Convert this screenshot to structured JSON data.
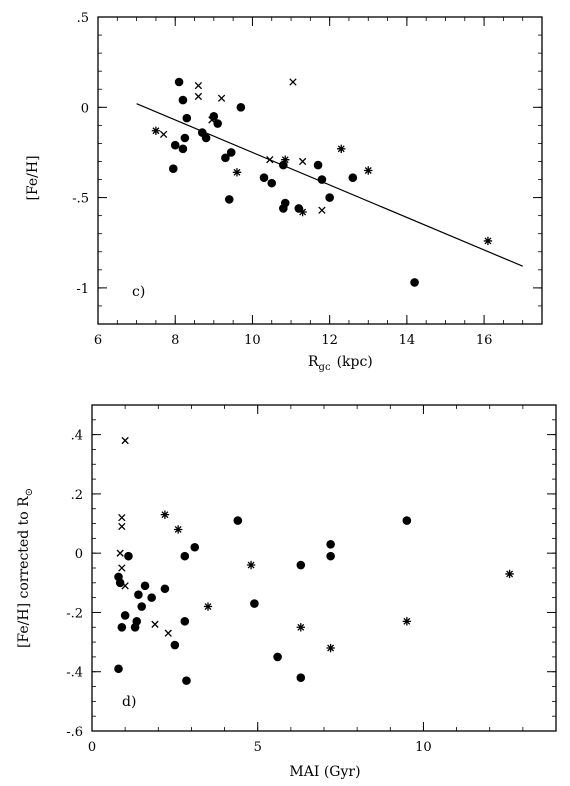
{
  "chart_data": [
    {
      "type": "scatter",
      "panel_label": "c)",
      "xlabel_main": "R",
      "xlabel_sub": "gc",
      "xlabel_unit": "(kpc)",
      "ylabel": "[Fe/H]",
      "xlim": [
        6,
        17.5
      ],
      "ylim": [
        -1.2,
        0.5
      ],
      "xticks": [
        "6",
        "8",
        "10",
        "12",
        "14",
        "16"
      ],
      "yticks": [
        ".5",
        "0",
        "-.5",
        "-1"
      ],
      "fit_line": {
        "x": [
          7.0,
          17.0
        ],
        "y": [
          0.02,
          -0.88
        ]
      },
      "series": [
        {
          "marker": "dot",
          "points": [
            [
              8.1,
              0.14
            ],
            [
              8.2,
              0.04
            ],
            [
              8.3,
              -0.06
            ],
            [
              8.25,
              -0.17
            ],
            [
              8.0,
              -0.21
            ],
            [
              8.2,
              -0.23
            ],
            [
              7.95,
              -0.34
            ],
            [
              8.7,
              -0.14
            ],
            [
              8.8,
              -0.17
            ],
            [
              9.0,
              -0.05
            ],
            [
              9.1,
              -0.09
            ],
            [
              9.3,
              -0.28
            ],
            [
              9.45,
              -0.25
            ],
            [
              9.7,
              0.0
            ],
            [
              9.4,
              -0.51
            ],
            [
              10.3,
              -0.39
            ],
            [
              10.5,
              -0.42
            ],
            [
              10.8,
              -0.32
            ],
            [
              10.85,
              -0.53
            ],
            [
              10.8,
              -0.56
            ],
            [
              11.2,
              -0.56
            ],
            [
              11.7,
              -0.32
            ],
            [
              11.8,
              -0.4
            ],
            [
              12.0,
              -0.5
            ],
            [
              12.6,
              -0.39
            ],
            [
              14.2,
              -0.97
            ]
          ]
        },
        {
          "marker": "cross",
          "points": [
            [
              8.6,
              0.12
            ],
            [
              8.6,
              0.06
            ],
            [
              8.95,
              -0.07
            ],
            [
              9.2,
              0.05
            ],
            [
              11.05,
              0.14
            ],
            [
              10.45,
              -0.29
            ],
            [
              11.3,
              -0.3
            ],
            [
              11.8,
              -0.57
            ],
            [
              7.7,
              -0.15
            ]
          ]
        },
        {
          "marker": "star",
          "points": [
            [
              7.5,
              -0.13
            ],
            [
              9.6,
              -0.36
            ],
            [
              10.85,
              -0.29
            ],
            [
              11.3,
              -0.58
            ],
            [
              12.3,
              -0.23
            ],
            [
              13.0,
              -0.35
            ],
            [
              16.1,
              -0.74
            ]
          ]
        }
      ]
    },
    {
      "type": "scatter",
      "panel_label": "d)",
      "xlabel": "MAI (Gyr)",
      "ylabel_main": "[Fe/H] corrected to R",
      "ylabel_sub": "⊙",
      "xlim": [
        0,
        14
      ],
      "ylim": [
        -0.6,
        0.5
      ],
      "xticks": [
        "0",
        "5",
        "10"
      ],
      "yticks": [
        ".4",
        ".2",
        "0",
        "-.2",
        "-.4",
        "-.6"
      ],
      "series": [
        {
          "marker": "dot",
          "points": [
            [
              0.8,
              -0.08
            ],
            [
              0.85,
              -0.1
            ],
            [
              0.8,
              -0.39
            ],
            [
              0.9,
              -0.25
            ],
            [
              1.0,
              -0.21
            ],
            [
              1.1,
              -0.01
            ],
            [
              1.3,
              -0.25
            ],
            [
              1.35,
              -0.23
            ],
            [
              1.4,
              -0.14
            ],
            [
              1.5,
              -0.18
            ],
            [
              1.6,
              -0.11
            ],
            [
              1.8,
              -0.15
            ],
            [
              2.2,
              -0.12
            ],
            [
              2.5,
              -0.31
            ],
            [
              2.8,
              -0.01
            ],
            [
              2.8,
              -0.23
            ],
            [
              2.85,
              -0.43
            ],
            [
              3.1,
              0.02
            ],
            [
              4.4,
              0.11
            ],
            [
              4.9,
              -0.17
            ],
            [
              5.6,
              -0.35
            ],
            [
              6.3,
              -0.04
            ],
            [
              6.3,
              -0.42
            ],
            [
              7.2,
              0.03
            ],
            [
              7.2,
              -0.01
            ],
            [
              9.5,
              0.11
            ]
          ]
        },
        {
          "marker": "cross",
          "points": [
            [
              1.0,
              0.38
            ],
            [
              0.9,
              0.12
            ],
            [
              0.9,
              0.09
            ],
            [
              0.85,
              0.0
            ],
            [
              0.9,
              -0.05
            ],
            [
              1.0,
              -0.11
            ],
            [
              1.9,
              -0.24
            ],
            [
              2.3,
              -0.27
            ]
          ]
        },
        {
          "marker": "star",
          "points": [
            [
              2.2,
              0.13
            ],
            [
              2.6,
              0.08
            ],
            [
              3.5,
              -0.18
            ],
            [
              4.8,
              -0.04
            ],
            [
              6.3,
              -0.25
            ],
            [
              7.2,
              -0.32
            ],
            [
              9.5,
              -0.23
            ],
            [
              12.6,
              -0.07
            ]
          ]
        }
      ]
    }
  ]
}
